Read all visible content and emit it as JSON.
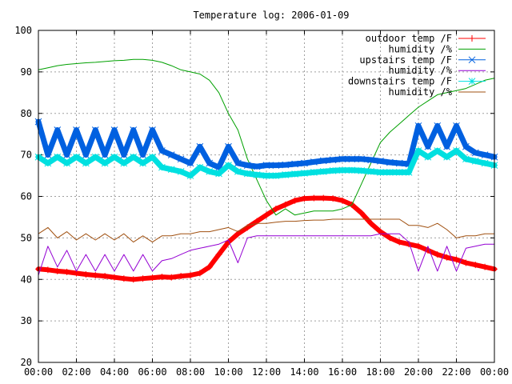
{
  "chart_data": {
    "type": "line",
    "title": "Temperature log: 2006-01-09",
    "xlabel": "",
    "ylabel": "",
    "xlim": [
      0,
      24
    ],
    "ylim": [
      20,
      100
    ],
    "grid": true,
    "legend_position": "top-right",
    "x_tick_labels": [
      "00:00",
      "02:00",
      "04:00",
      "06:00",
      "08:00",
      "10:00",
      "12:00",
      "14:00",
      "16:00",
      "18:00",
      "20:00",
      "22:00",
      "00:00"
    ],
    "x_tick_values": [
      0,
      2,
      4,
      6,
      8,
      10,
      12,
      14,
      16,
      18,
      20,
      22,
      24
    ],
    "y_tick_values": [
      20,
      30,
      40,
      50,
      60,
      70,
      80,
      90,
      100
    ],
    "series": [
      {
        "name": "outdoor temp /F",
        "color": "#ff0000",
        "marker": "plus",
        "x": [
          0,
          0.5,
          1,
          1.5,
          2,
          2.5,
          3,
          3.5,
          4,
          4.5,
          5,
          5.5,
          6,
          6.5,
          7,
          7.5,
          8,
          8.5,
          9,
          9.5,
          10,
          10.5,
          11,
          11.5,
          12,
          12.5,
          13,
          13.5,
          14,
          14.5,
          15,
          15.5,
          16,
          16.5,
          17,
          17.5,
          18,
          18.5,
          19,
          19.5,
          20,
          20.5,
          21,
          21.5,
          22,
          22.5,
          23,
          23.5,
          24
        ],
        "y": [
          42.5,
          42.3,
          42,
          41.8,
          41.5,
          41.2,
          41,
          40.8,
          40.5,
          40.2,
          40,
          40.2,
          40.4,
          40.6,
          40.5,
          40.8,
          41,
          41.5,
          43,
          46,
          49,
          51,
          52.5,
          54,
          55.5,
          57,
          58,
          59,
          59.5,
          59.6,
          59.6,
          59.5,
          59,
          58,
          56,
          53.5,
          51.5,
          50,
          49,
          48.5,
          48,
          47,
          46,
          45.3,
          44.8,
          44,
          43.5,
          43,
          42.5
        ]
      },
      {
        "name": "humidity /%",
        "color": "#00a000",
        "marker": "none",
        "x": [
          0,
          0.5,
          1,
          1.5,
          2,
          2.5,
          3,
          3.5,
          4,
          4.5,
          5,
          5.5,
          6,
          6.5,
          7,
          7.5,
          8,
          8.5,
          9,
          9.5,
          10,
          10.5,
          11,
          11.5,
          12,
          12.5,
          13,
          13.5,
          14,
          14.5,
          15,
          15.5,
          16,
          16.5,
          17,
          17.5,
          18,
          18.5,
          19,
          19.5,
          20,
          20.5,
          21,
          21.5,
          22,
          22.5,
          23,
          23.5,
          24
        ],
        "y": [
          90.5,
          91,
          91.5,
          91.8,
          92,
          92.2,
          92.3,
          92.5,
          92.7,
          92.8,
          93,
          93,
          92.8,
          92.3,
          91.5,
          90.5,
          90,
          89.5,
          88,
          85,
          80,
          76,
          69,
          64,
          59,
          55.5,
          57,
          55.5,
          56,
          56.5,
          56.5,
          56.5,
          57,
          58,
          63,
          68,
          73,
          75.5,
          77.5,
          79.5,
          81.5,
          83,
          84.5,
          85,
          85.5,
          86,
          87,
          88,
          88.5
        ]
      },
      {
        "name": "upstairs temp /F",
        "color": "#0060e0",
        "marker": "x",
        "x": [
          0,
          0.5,
          1,
          1.5,
          2,
          2.5,
          3,
          3.5,
          4,
          4.5,
          5,
          5.5,
          6,
          6.5,
          7,
          7.5,
          8,
          8.5,
          9,
          9.5,
          10,
          10.5,
          11,
          11.5,
          12,
          12.5,
          13,
          13.5,
          14,
          14.5,
          15,
          15.5,
          16,
          16.5,
          17,
          17.5,
          18,
          18.5,
          19,
          19.5,
          20,
          20.5,
          21,
          21.5,
          22,
          22.5,
          23,
          23.5,
          24
        ],
        "y": [
          78,
          70,
          76,
          70,
          76,
          70,
          76,
          70,
          76,
          70,
          76,
          70,
          76,
          71,
          70,
          69,
          68,
          72,
          68,
          67,
          72,
          68,
          67.5,
          67.2,
          67.5,
          67.5,
          67.6,
          67.8,
          68,
          68.3,
          68.6,
          68.8,
          69,
          69,
          69,
          68.8,
          68.5,
          68.2,
          68,
          67.8,
          77,
          72,
          77,
          72,
          77,
          72,
          70.5,
          70,
          69.5
        ]
      },
      {
        "name": "humidity /%",
        "color": "#9400d3",
        "marker": "none",
        "x": [
          0,
          0.5,
          1,
          1.5,
          2,
          2.5,
          3,
          3.5,
          4,
          4.5,
          5,
          5.5,
          6,
          6.5,
          7,
          7.5,
          8,
          8.5,
          9,
          9.5,
          10,
          10.5,
          11,
          11.5,
          12,
          12.5,
          13,
          13.5,
          14,
          14.5,
          15,
          15.5,
          16,
          16.5,
          17,
          17.5,
          18,
          18.5,
          19,
          19.5,
          20,
          20.5,
          21,
          21.5,
          22,
          22.5,
          23,
          23.5,
          24
        ],
        "y": [
          41,
          48,
          43,
          47,
          42,
          46,
          42,
          46,
          42,
          46,
          42,
          46,
          42,
          44.5,
          45,
          46,
          47,
          47.5,
          48,
          48.5,
          49.5,
          44,
          50,
          50.5,
          50.5,
          50.5,
          50.5,
          50.5,
          50.5,
          50.5,
          50.5,
          50.5,
          50.5,
          50.5,
          50.5,
          50.5,
          51,
          51,
          51,
          49,
          42,
          48,
          42,
          48,
          42,
          47.5,
          48,
          48.5,
          48.5
        ]
      },
      {
        "name": "downstairs temp /F",
        "color": "#00e0e0",
        "marker": "star",
        "x": [
          0,
          0.5,
          1,
          1.5,
          2,
          2.5,
          3,
          3.5,
          4,
          4.5,
          5,
          5.5,
          6,
          6.5,
          7,
          7.5,
          8,
          8.5,
          9,
          9.5,
          10,
          10.5,
          11,
          11.5,
          12,
          12.5,
          13,
          13.5,
          14,
          14.5,
          15,
          15.5,
          16,
          16.5,
          17,
          17.5,
          18,
          18.5,
          19,
          19.5,
          20,
          20.5,
          21,
          21.5,
          22,
          22.5,
          23,
          23.5,
          24
        ],
        "y": [
          69.5,
          68,
          69.5,
          68,
          69.5,
          68,
          69.5,
          68,
          69.5,
          68,
          69.5,
          68,
          69.5,
          67,
          66.5,
          66,
          65,
          67,
          66,
          65.5,
          67.5,
          66,
          65.5,
          65.2,
          65,
          65,
          65.2,
          65.4,
          65.6,
          65.8,
          66,
          66.2,
          66.3,
          66.3,
          66.2,
          66,
          65.8,
          65.8,
          65.8,
          65.8,
          71,
          69.5,
          71,
          69.5,
          71,
          69,
          68.5,
          68,
          67.5
        ]
      },
      {
        "name": "humidity /%",
        "color": "#a05010",
        "marker": "none",
        "x": [
          0,
          0.5,
          1,
          1.5,
          2,
          2.5,
          3,
          3.5,
          4,
          4.5,
          5,
          5.5,
          6,
          6.5,
          7,
          7.5,
          8,
          8.5,
          9,
          9.5,
          10,
          10.5,
          11,
          11.5,
          12,
          12.5,
          13,
          13.5,
          14,
          14.5,
          15,
          15.5,
          16,
          16.5,
          17,
          17.5,
          18,
          18.5,
          19,
          19.5,
          20,
          20.5,
          21,
          21.5,
          22,
          22.5,
          23,
          23.5,
          24
        ],
        "y": [
          51,
          52.5,
          50,
          51.5,
          49.5,
          51,
          49.5,
          51,
          49.5,
          51,
          49,
          50.5,
          49,
          50.5,
          50.5,
          51,
          51,
          51.5,
          51.5,
          52,
          52.5,
          51.5,
          53,
          53.5,
          53.5,
          53.8,
          54,
          54,
          54.2,
          54.3,
          54.3,
          54.5,
          54.5,
          54.5,
          54.5,
          54.5,
          54.5,
          54.5,
          54.5,
          53,
          53,
          52.5,
          53.5,
          52,
          50,
          50.5,
          50.5,
          51,
          51
        ]
      }
    ]
  }
}
